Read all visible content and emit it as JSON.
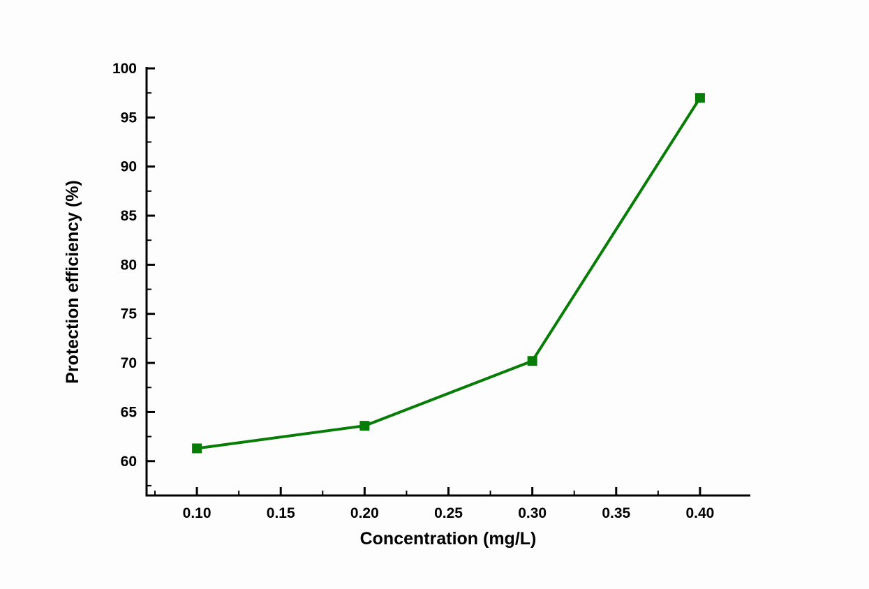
{
  "figure": {
    "background_color": "#fdfdfd",
    "axis_color": "#000000"
  },
  "chart_data": {
    "type": "line",
    "title": "",
    "xlabel": "Concentration (mg/L)",
    "ylabel": "Protection efficiency (%)",
    "series": [
      {
        "name": "Protection efficiency",
        "x": [
          0.1,
          0.2,
          0.3,
          0.4
        ],
        "y": [
          61.3,
          63.6,
          70.2,
          97.0
        ],
        "line_color": "#077d07",
        "marker": "square",
        "marker_color": "#077d07",
        "line_width": 4
      }
    ],
    "xlim": [
      0.07,
      0.43
    ],
    "ylim": [
      56.5,
      100
    ],
    "xticks": [
      0.1,
      0.15,
      0.2,
      0.25,
      0.3,
      0.35,
      0.4
    ],
    "xtick_labels": [
      "0.10",
      "0.15",
      "0.20",
      "0.25",
      "0.30",
      "0.35",
      "0.40"
    ],
    "x_minor_step": 0.025,
    "yticks": [
      60,
      65,
      70,
      75,
      80,
      85,
      90,
      95,
      100
    ],
    "ytick_labels": [
      "60",
      "65",
      "70",
      "75",
      "80",
      "85",
      "90",
      "95",
      "100"
    ],
    "y_minor_step": 2.5,
    "grid": false,
    "legend": "none",
    "axes_shown": [
      "left",
      "bottom"
    ],
    "tick_direction": "in"
  }
}
